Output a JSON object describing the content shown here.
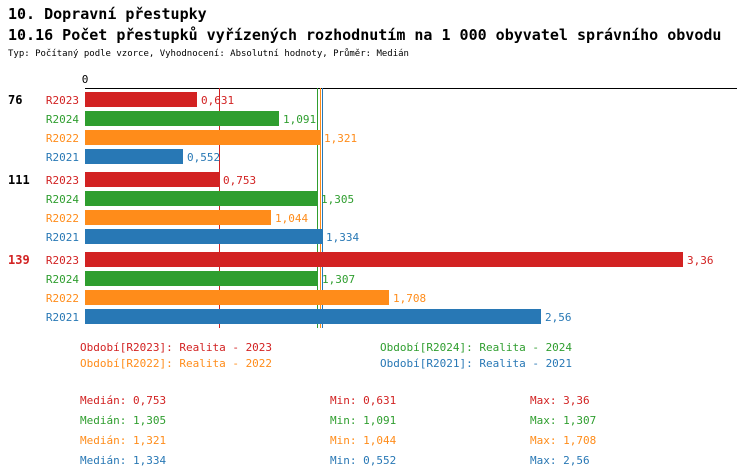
{
  "header": {
    "title": "10. Dopravní přestupky",
    "subtitle": "10.16 Počet přestupků vyřízených rozhodnutím na 1 000 obyvatel správního obvodu",
    "meta": "Typ: Počítaný podle vzorce, Vyhodnocení: Absolutní hodnoty, Průměr: Medián"
  },
  "colors": {
    "R2023": "#d22222",
    "R2024": "#2f9e2f",
    "R2022": "#ff8c1a",
    "R2021": "#2878b5"
  },
  "chart_data": {
    "type": "bar",
    "orientation": "horizontal",
    "title": "10.16 Počet přestupků vyřízených rozhodnutím na 1 000 obyvatel správního obvodu",
    "axis_zero_label": "0",
    "xlim": [
      0,
      3.66
    ],
    "grid": false,
    "categories": [
      "76",
      "111",
      "139"
    ],
    "category_label_colors": [
      "#000000",
      "#000000",
      "#d22222"
    ],
    "bar_order": [
      "R2023",
      "R2024",
      "R2022",
      "R2021"
    ],
    "series": [
      {
        "name": "R2023",
        "values": [
          0.631,
          0.753,
          3.36
        ],
        "value_labels": [
          "0,631",
          "0,753",
          "3,36"
        ],
        "median": 0.753,
        "min": 0.631,
        "max": 3.36
      },
      {
        "name": "R2024",
        "values": [
          1.091,
          1.305,
          1.307
        ],
        "value_labels": [
          "1,091",
          "1,305",
          "1,307"
        ],
        "median": 1.305,
        "min": 1.091,
        "max": 1.307
      },
      {
        "name": "R2022",
        "values": [
          1.321,
          1.044,
          1.708
        ],
        "value_labels": [
          "1,321",
          "1,044",
          "1,708"
        ],
        "median": 1.321,
        "min": 1.044,
        "max": 1.708
      },
      {
        "name": "R2021",
        "values": [
          0.552,
          1.334,
          2.56
        ],
        "value_labels": [
          "0,552",
          "1,334",
          "2,56"
        ],
        "median": 1.334,
        "min": 0.552,
        "max": 2.56
      }
    ],
    "median_lines": [
      {
        "series": "R2023",
        "value": 0.753
      },
      {
        "series": "R2024",
        "value": 1.305
      },
      {
        "series": "R2022",
        "value": 1.321
      },
      {
        "series": "R2021",
        "value": 1.334
      }
    ],
    "legend_position": "bottom"
  },
  "legend": [
    {
      "series": "R2023",
      "label": "Období[R2023]: Realita - 2023"
    },
    {
      "series": "R2024",
      "label": "Období[R2024]: Realita - 2024"
    },
    {
      "series": "R2022",
      "label": "Období[R2022]: Realita - 2022"
    },
    {
      "series": "R2021",
      "label": "Období[R2021]: Realita - 2021"
    }
  ],
  "stats": [
    {
      "series": "R2023",
      "cells": [
        "Medián: 0,753",
        "Min: 0,631",
        "Max: 3,36"
      ]
    },
    {
      "series": "R2024",
      "cells": [
        "Medián: 1,305",
        "Min: 1,091",
        "Max: 1,307"
      ]
    },
    {
      "series": "R2022",
      "cells": [
        "Medián: 1,321",
        "Min: 1,044",
        "Max: 1,708"
      ]
    },
    {
      "series": "R2021",
      "cells": [
        "Medián: 1,334",
        "Min: 0,552",
        "Max: 2,56"
      ]
    }
  ]
}
